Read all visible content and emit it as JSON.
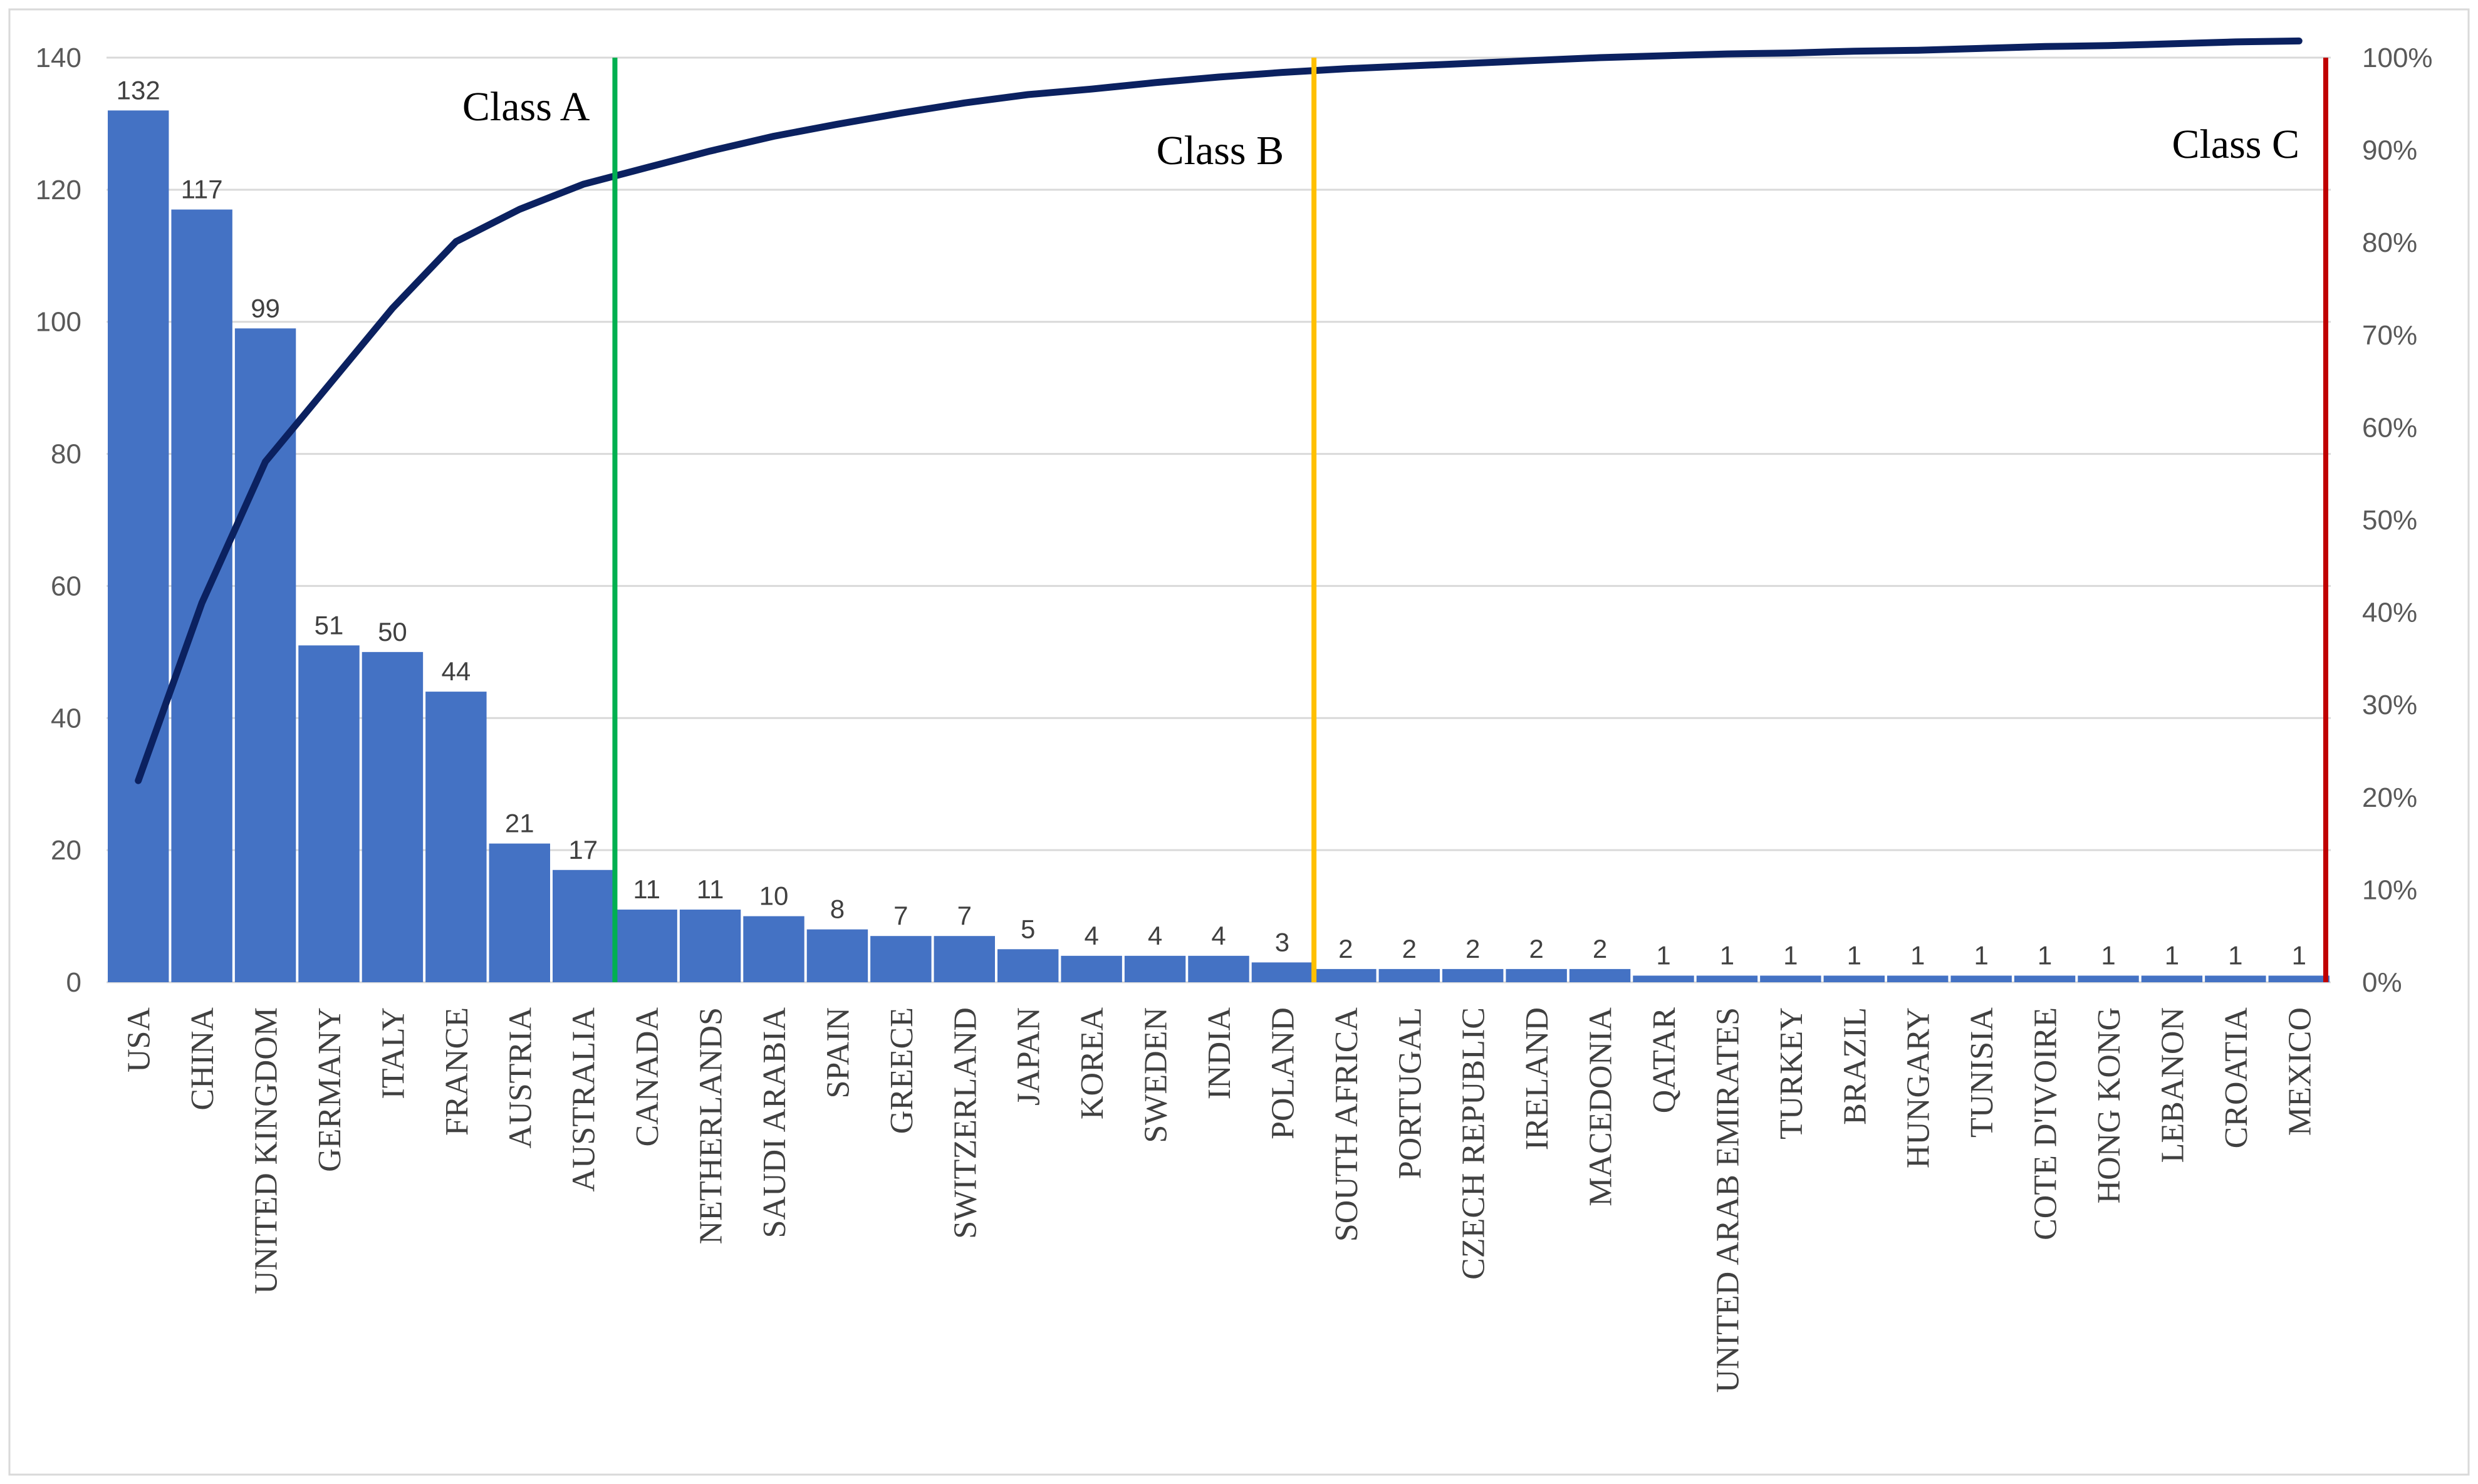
{
  "chart_data": {
    "type": "bar",
    "title": "",
    "xlabel": "",
    "ylabel": "",
    "ylim": [
      0,
      140
    ],
    "y_ticks": [
      0,
      20,
      40,
      60,
      80,
      100,
      120,
      140
    ],
    "y2lim": [
      0,
      100
    ],
    "y2_ticks": [
      "0%",
      "10%",
      "20%",
      "30%",
      "40%",
      "50%",
      "60%",
      "70%",
      "80%",
      "90%",
      "100%"
    ],
    "grid": true,
    "categories": [
      "USA",
      "CHINA",
      "UNITED KINGDOM",
      "GERMANY",
      "ITALY",
      "FRANCE",
      "AUSTRIA",
      "AUSTRALIA",
      "CANADA",
      "NETHERLANDS",
      "SAUDI ARABIA",
      "SPAIN",
      "GREECE",
      "SWITZERLAND",
      "JAPAN",
      "KOREA",
      "SWEDEN",
      "INDIA",
      "POLAND",
      "SOUTH AFRICA",
      "PORTUGAL",
      "CZECH REPUBLIC",
      "IRELAND",
      "MACEDONIA",
      "QATAR",
      "UNITED ARAB EMIRATES",
      "TURKEY",
      "BRAZIL",
      "HUNGARY",
      "TUNISIA",
      "COTE D'IVOIRE",
      "HONG KONG",
      "LEBANON",
      "CROATIA",
      "MEXICO"
    ],
    "series": [
      {
        "type": "bar",
        "axis": "left",
        "color": "#4472C4",
        "values": [
          132,
          117,
          99,
          51,
          50,
          44,
          21,
          17,
          11,
          11,
          10,
          8,
          7,
          7,
          5,
          4,
          4,
          4,
          3,
          2,
          2,
          2,
          2,
          2,
          1,
          1,
          1,
          1,
          1,
          1,
          1,
          1,
          1,
          1,
          1
        ]
      },
      {
        "type": "line",
        "axis": "right",
        "color": "#0B2160",
        "values": [
          21.8,
          41.0,
          56.3,
          64.6,
          72.9,
          80.1,
          83.6,
          86.3,
          88.1,
          89.9,
          91.5,
          92.8,
          94.0,
          95.1,
          96.0,
          96.6,
          97.3,
          97.9,
          98.4,
          98.8,
          99.1,
          99.4,
          99.7,
          100.0,
          100.2,
          100.4,
          100.5,
          100.7,
          100.8,
          101.0,
          101.2,
          101.3,
          101.5,
          101.7,
          101.8
        ]
      }
    ],
    "class_markers": [
      {
        "label": "Class A",
        "after_index": 7,
        "color": "#00B050"
      },
      {
        "label": "Class B",
        "after_index": 18,
        "color": "#FFC000"
      },
      {
        "label": "Class C",
        "after_index": 34,
        "color": "#C00000"
      }
    ]
  }
}
